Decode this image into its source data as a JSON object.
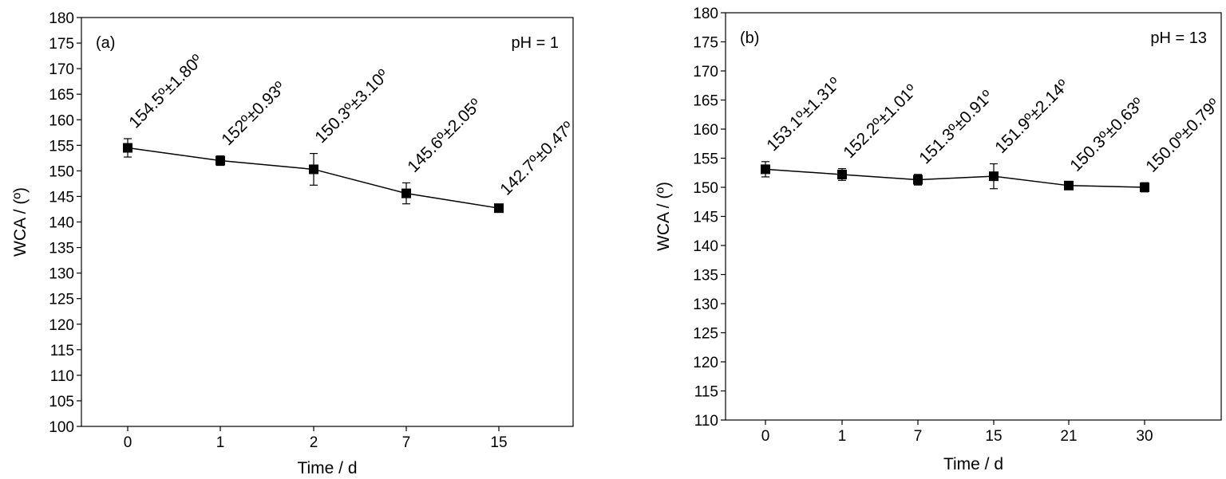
{
  "chart_data": [
    {
      "type": "line",
      "panel_label": "(a)",
      "annotation": "pH = 1",
      "xlabel": "Time / d",
      "ylabel": "WCA / (º)",
      "categories": [
        "0",
        "1",
        "2",
        "7",
        "15"
      ],
      "series": [
        {
          "values": [
            154.5,
            152.0,
            150.3,
            145.6,
            142.7
          ],
          "errors": [
            1.8,
            0.93,
            3.1,
            2.05,
            0.47
          ],
          "labels": [
            "154.5º±1.80º",
            "152º±0.93º",
            "150.3º±3.10º",
            "145.6º±2.05º",
            "142.7º±0.47º"
          ]
        }
      ],
      "ylim": [
        100,
        180
      ],
      "yticks": [
        100,
        105,
        110,
        115,
        120,
        125,
        130,
        135,
        140,
        145,
        150,
        155,
        160,
        165,
        170,
        175,
        180
      ],
      "grid": false
    },
    {
      "type": "line",
      "panel_label": "(b)",
      "annotation": "pH = 13",
      "xlabel": "Time / d",
      "ylabel": "WCA / (º)",
      "categories": [
        "0",
        "1",
        "7",
        "15",
        "21",
        "30"
      ],
      "series": [
        {
          "values": [
            153.1,
            152.2,
            151.3,
            151.9,
            150.3,
            150.0
          ],
          "errors": [
            1.31,
            1.01,
            0.91,
            2.14,
            0.63,
            0.79
          ],
          "labels": [
            "153.1º±1.31º",
            "152.2º±1.01º",
            "151.3º±0.91º",
            "151.9º±2.14º",
            "150.3º±0.63º",
            "150.0º±0.79º"
          ]
        }
      ],
      "ylim": [
        110,
        180
      ],
      "yticks": [
        110,
        115,
        120,
        125,
        130,
        135,
        140,
        145,
        150,
        155,
        160,
        165,
        170,
        175,
        180
      ],
      "grid": false
    }
  ]
}
